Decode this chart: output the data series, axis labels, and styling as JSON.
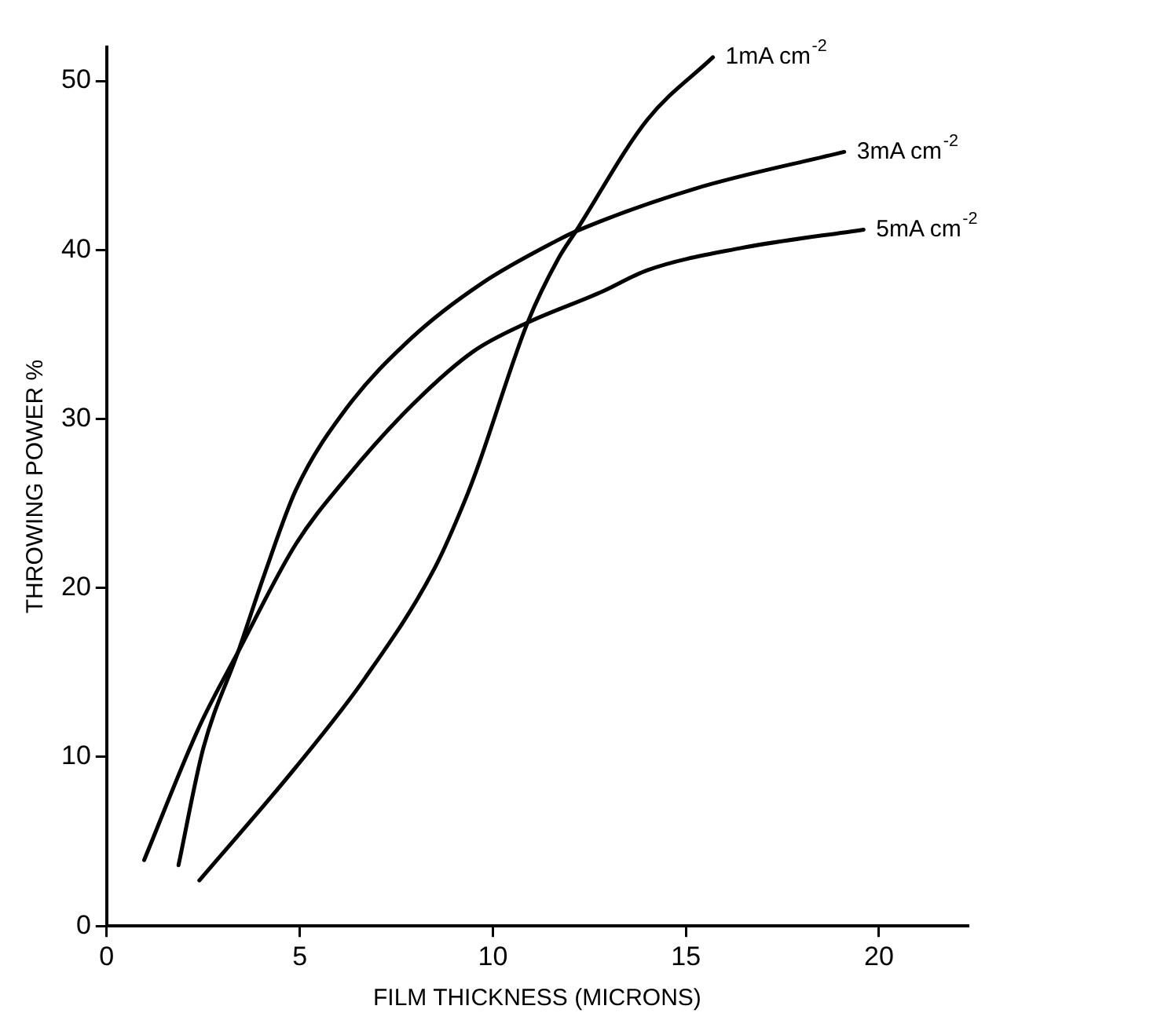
{
  "chart_data": {
    "type": "line",
    "xlabel": "FILM THICKNESS (MICRONS)",
    "ylabel": "THROWING POWER %",
    "xlim": [
      0,
      22.3
    ],
    "ylim": [
      0,
      52
    ],
    "xticks": [
      0,
      5,
      10,
      15,
      20
    ],
    "yticks": [
      0,
      10,
      20,
      30,
      40,
      50
    ],
    "grid": false,
    "marker": "none",
    "line_style": "solid",
    "series": [
      {
        "name": "1mA cm$^{-2}$",
        "color": "#000000",
        "x": [
          2.4,
          4.9,
          6.7,
          8.5,
          9.3,
          9.6,
          10.9,
          11.7,
          12.15,
          14,
          15.7
        ],
        "values": [
          2.7,
          9.4,
          14.7,
          21.2,
          25.3,
          27.1,
          35.7,
          39.5,
          41.1,
          47.7,
          51.4
        ]
      },
      {
        "name": "3mA cm$^{-2}$",
        "color": "#000000",
        "x": [
          1.86,
          2.5,
          3.4,
          4.1,
          4.9,
          6.2,
          7.9,
          9.7,
          11.7,
          12.15,
          15.2,
          19.1
        ],
        "values": [
          3.6,
          10.5,
          16.2,
          20.9,
          25.8,
          30.6,
          34.8,
          38.0,
          40.6,
          41.1,
          43.6,
          45.8
        ]
      },
      {
        "name": "5mA cm$^{-2}$",
        "color": "#000000",
        "x": [
          0.97,
          2.4,
          3.4,
          4.9,
          6.2,
          7.9,
          9.5,
          10.9,
          12.8,
          14,
          16.4,
          19.6
        ],
        "values": [
          3.9,
          11.8,
          16.2,
          22.6,
          26.5,
          30.8,
          34.0,
          35.7,
          37.5,
          38.8,
          40.1,
          41.2
        ]
      }
    ]
  }
}
